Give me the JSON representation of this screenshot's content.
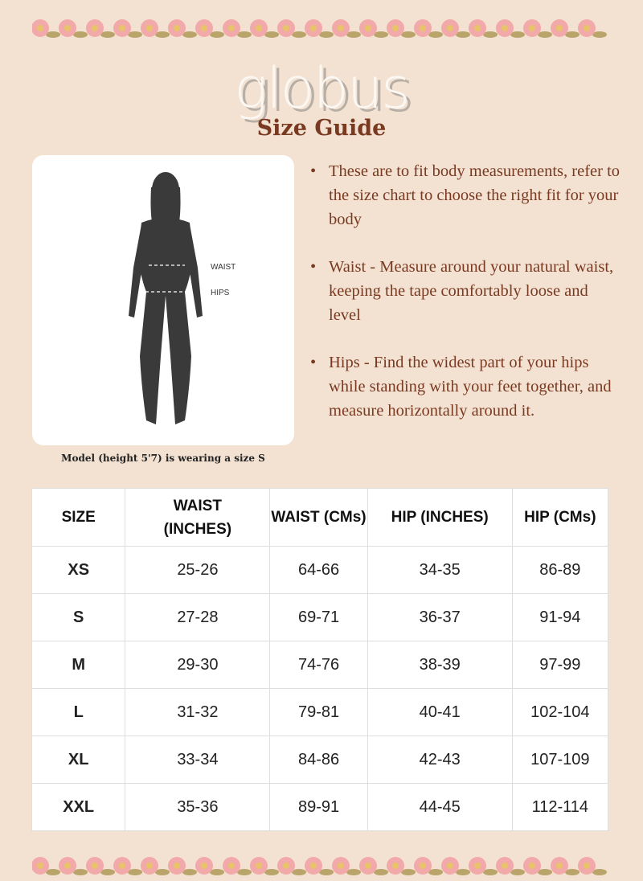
{
  "brand": "globus",
  "title": "Size Guide",
  "figure": {
    "waist_label": "WAIST",
    "hips_label": "HIPS",
    "caption": "Model (height 5'7) is wearing a size S"
  },
  "bullets": [
    "These are to fit body measurements, refer to the size chart to choose the right fit for your body",
    "Waist - Measure around your natural waist, keeping the tape comfortably loose and level",
    "Hips - Find the widest part of your hips while standing with your feet together, and measure horizontally around it."
  ],
  "table": {
    "headers": [
      "SIZE",
      "WAIST (INCHES)",
      "WAIST (CMs)",
      "HIP (INCHES)",
      "HIP (CMs)"
    ],
    "rows": [
      [
        "XS",
        "25-26",
        "64-66",
        "34-35",
        "86-89"
      ],
      [
        "S",
        "27-28",
        "69-71",
        "36-37",
        "91-94"
      ],
      [
        "M",
        "29-30",
        "74-76",
        "38-39",
        "97-99"
      ],
      [
        "L",
        "31-32",
        "79-81",
        "40-41",
        "102-104"
      ],
      [
        "XL",
        "33-34",
        "84-86",
        "42-43",
        "107-109"
      ],
      [
        "XXL",
        "35-36",
        "89-91",
        "44-45",
        "112-114"
      ]
    ]
  },
  "colors": {
    "background": "#f3e2d2",
    "accent": "#7a3a22",
    "flower": "#f2a9a9",
    "leaf": "#b9a46a"
  }
}
